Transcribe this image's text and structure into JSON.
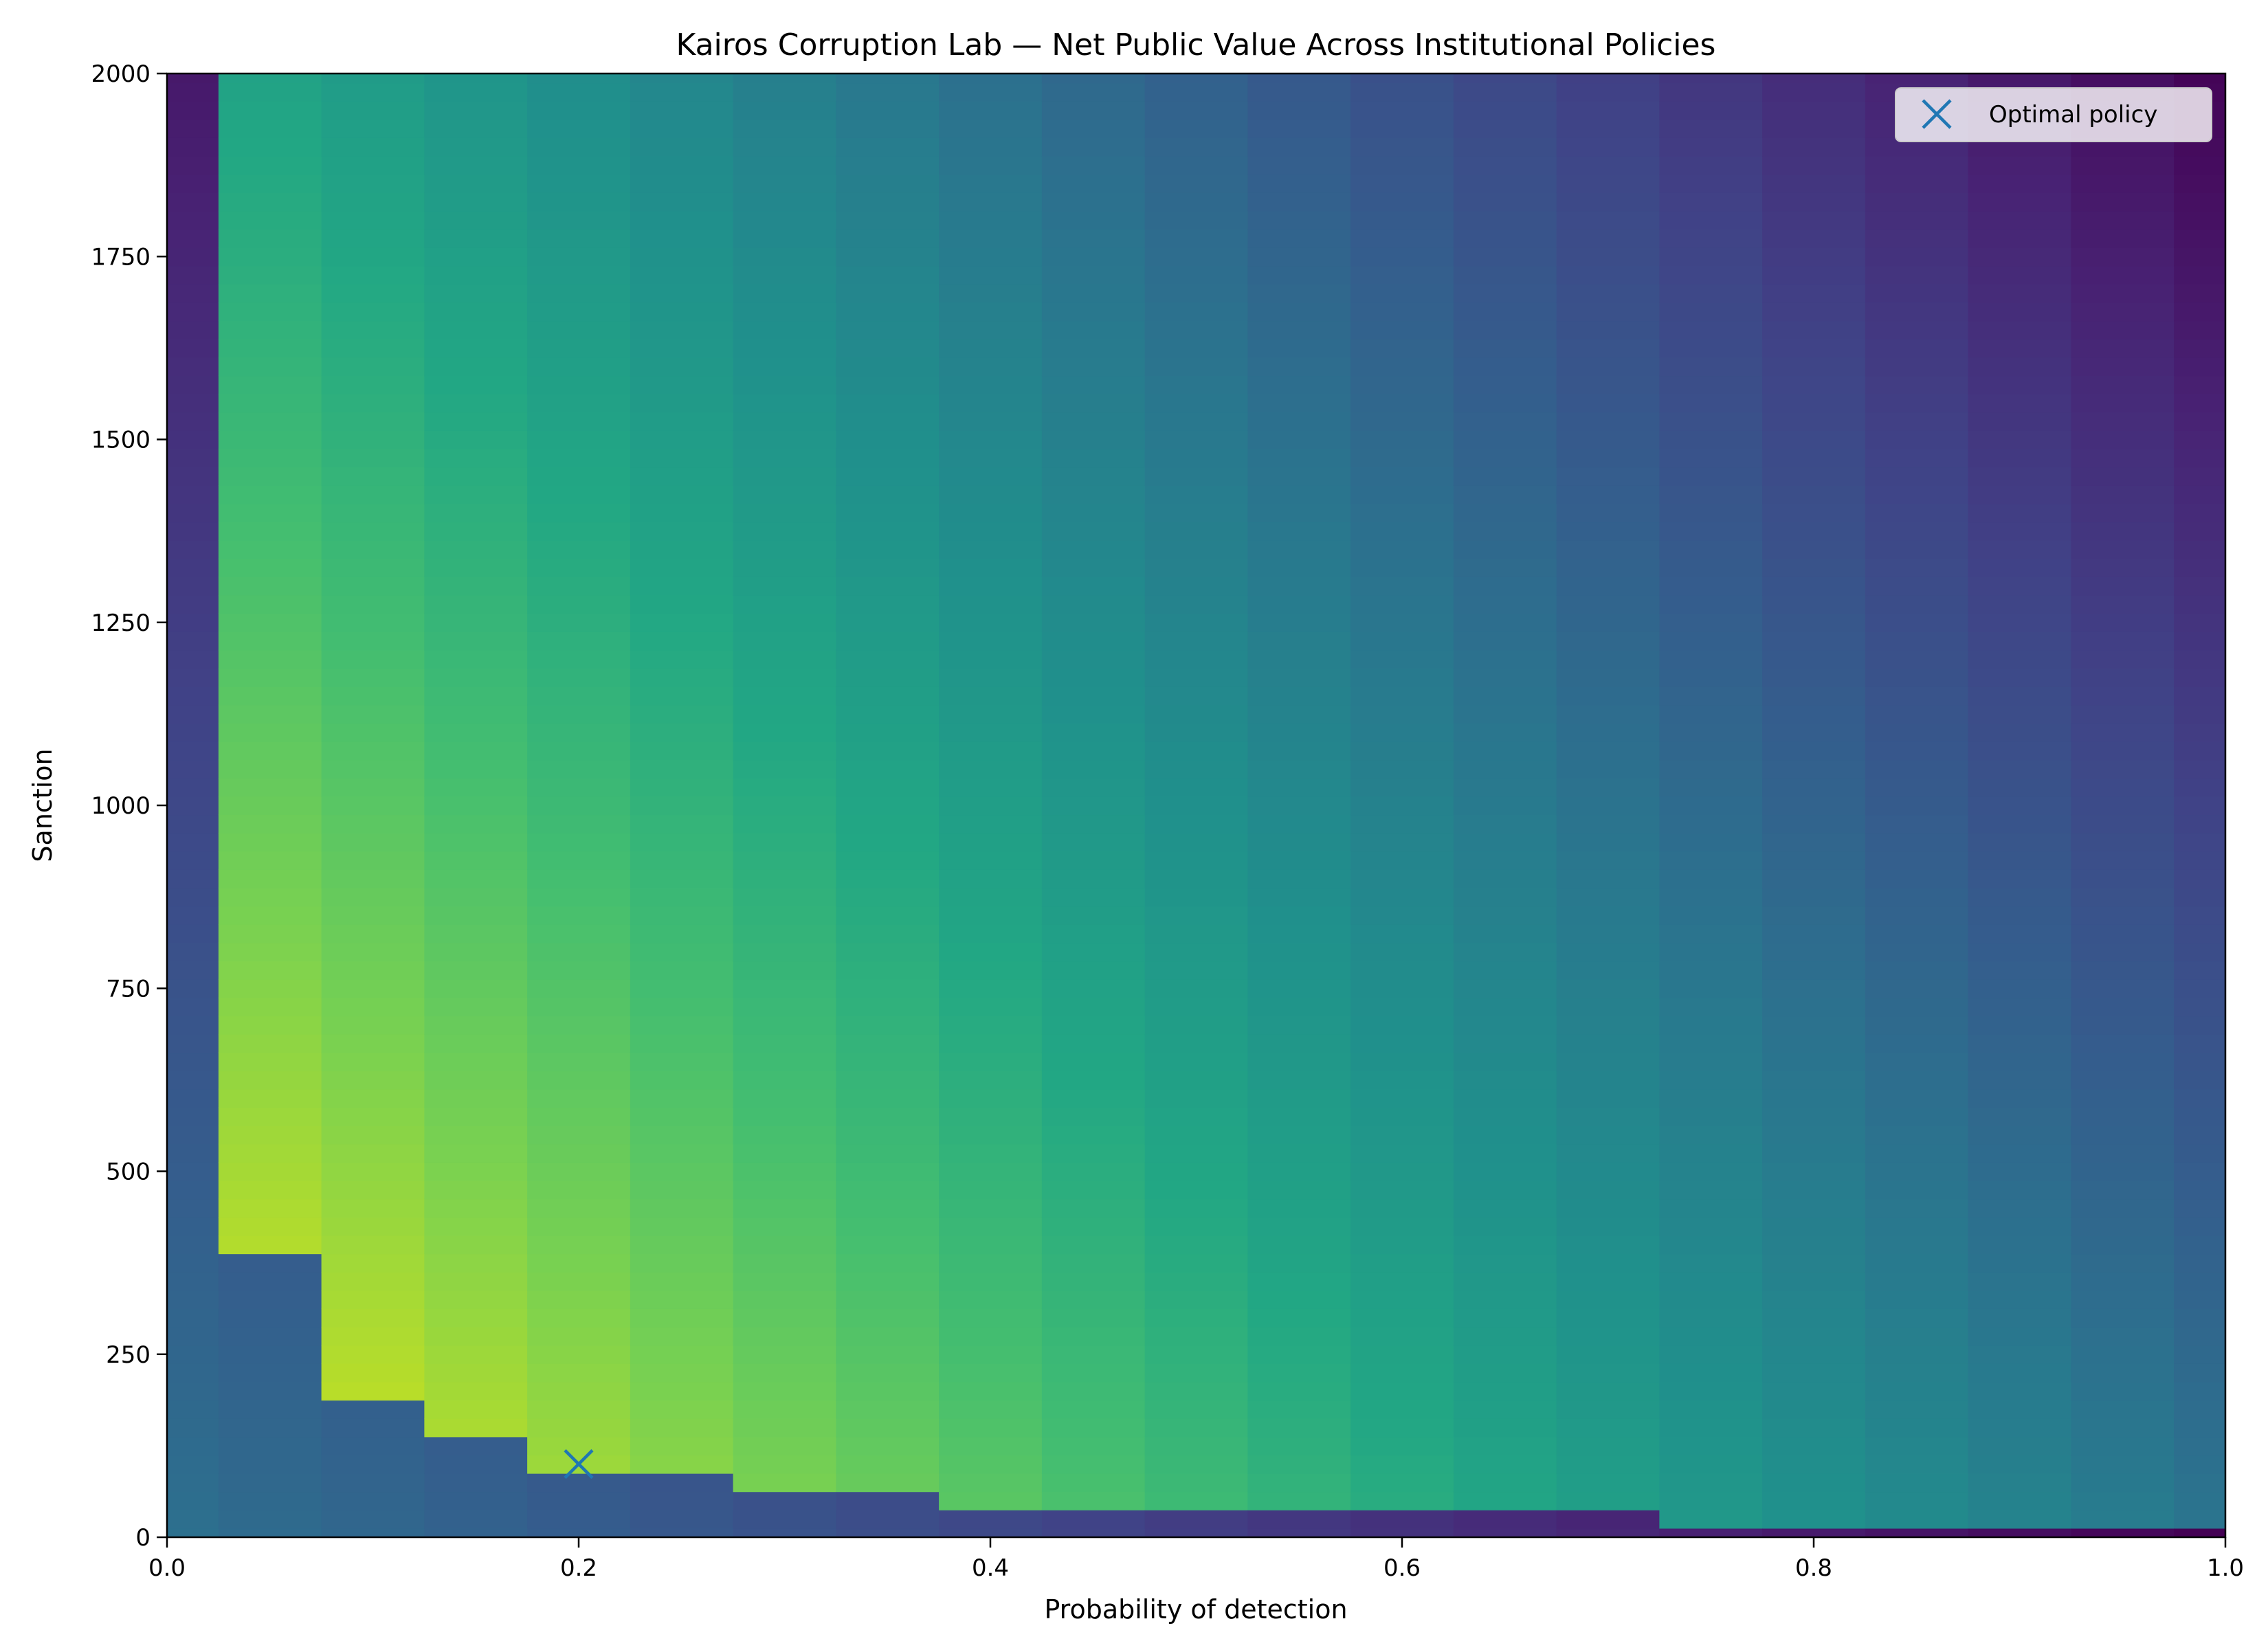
{
  "chart_data": {
    "type": "heatmap",
    "title": "Kairos Corruption Lab — Net Public Value Across Institutional Policies",
    "xlabel": "Probability of detection",
    "ylabel": "Sanction",
    "xlim": [
      0.0,
      1.0
    ],
    "ylim": [
      0,
      2000
    ],
    "x_ticks": [
      0.0,
      0.2,
      0.4,
      0.6,
      0.8,
      1.0
    ],
    "x_tick_labels": [
      "0.0",
      "0.2",
      "0.4",
      "0.6",
      "0.8",
      "1.0"
    ],
    "y_ticks": [
      0,
      250,
      500,
      750,
      1000,
      1250,
      1500,
      1750,
      2000
    ],
    "y_tick_labels": [
      "0",
      "250",
      "500",
      "750",
      "1000",
      "1250",
      "1500",
      "1750",
      "2000"
    ],
    "colormap": "viridis",
    "grid": false,
    "x_grid": {
      "start": 0.0,
      "stop": 1.0,
      "count": 21
    },
    "y_grid": {
      "start": 0,
      "stop": 2000,
      "count": 81
    },
    "deterrence_threshold": [
      {
        "x_from": 0.0,
        "x_to": 0.05,
        "min_sanction": null
      },
      {
        "x_from": 0.05,
        "x_to": 0.1,
        "min_sanction": 400
      },
      {
        "x_from": 0.1,
        "x_to": 0.15,
        "min_sanction": 200
      },
      {
        "x_from": 0.15,
        "x_to": 0.2,
        "min_sanction": 150
      },
      {
        "x_from": 0.2,
        "x_to": 0.3,
        "min_sanction": 100
      },
      {
        "x_from": 0.3,
        "x_to": 0.4,
        "min_sanction": 75
      },
      {
        "x_from": 0.4,
        "x_to": 0.75,
        "min_sanction": 50
      },
      {
        "x_from": 0.75,
        "x_to": 1.0,
        "min_sanction": 25
      }
    ],
    "optimal_point": {
      "x": 0.2,
      "y": 100,
      "label": "Optimal policy"
    },
    "legend": {
      "entries": [
        "Optimal policy"
      ],
      "position": "upper right"
    },
    "marker_color": "#1f77b4"
  }
}
